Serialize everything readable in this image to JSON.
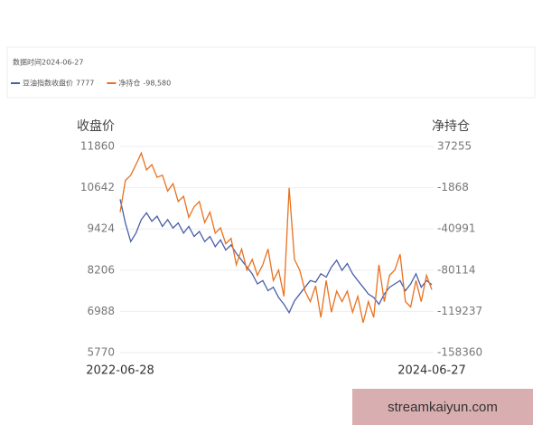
{
  "chart_data": {
    "type": "line",
    "header_text": "数据时间2024-06-27",
    "y_label": "收盘价",
    "y2_label": "净持仓",
    "watermark": "streamkaiyun.com",
    "categories": [
      "2022-06-28",
      null,
      null,
      null,
      null,
      null,
      null,
      null,
      null,
      null,
      null,
      null,
      null,
      null,
      null,
      null,
      null,
      null,
      null,
      null,
      null,
      null,
      null,
      null,
      null,
      null,
      null,
      null,
      null,
      null,
      null,
      null,
      null,
      null,
      null,
      null,
      null,
      null,
      null,
      null,
      null,
      null,
      null,
      null,
      null,
      null,
      null,
      null,
      null,
      null,
      null,
      null,
      null,
      null,
      null,
      null,
      null,
      null,
      null,
      "2024-06-27"
    ],
    "ylim": [
      5770,
      11860
    ],
    "yticks": [
      5770,
      6988,
      8206,
      9424,
      10642,
      11860
    ],
    "y2lim": [
      -158360,
      37255
    ],
    "y2ticks": [
      -158360,
      -119237,
      -80114,
      -40991,
      -1868,
      37255
    ],
    "grid": true,
    "series": [
      {
        "name": "豆油指数收盘价",
        "color": "#4a5ea8",
        "last": 7777,
        "values": [
          10300,
          9600,
          9050,
          9300,
          9700,
          9900,
          9650,
          9800,
          9500,
          9700,
          9450,
          9600,
          9300,
          9500,
          9200,
          9350,
          9050,
          9200,
          8900,
          9100,
          8800,
          8950,
          8700,
          8500,
          8300,
          8100,
          7800,
          7900,
          7600,
          7700,
          7400,
          7200,
          6950,
          7300,
          7500,
          7700,
          7900,
          7850,
          8100,
          8000,
          8300,
          8500,
          8200,
          8400,
          8100,
          7900,
          7700,
          7500,
          7400,
          7200,
          7500,
          7700,
          7800,
          7900,
          7600,
          7800,
          8100,
          7700,
          7900,
          7777
        ]
      },
      {
        "name": "净持仓",
        "color": "#e8711f",
        "axis": "y2",
        "last": {
          "value": -98580,
          "label": "-98,580"
        },
        "values": [
          -25000,
          5000,
          10000,
          20000,
          31000,
          15000,
          20000,
          8000,
          10000,
          -5000,
          2000,
          -15000,
          -10000,
          -30000,
          -20000,
          -15000,
          -35000,
          -25000,
          -45000,
          -40000,
          -55000,
          -50000,
          -75000,
          -60000,
          -80000,
          -70000,
          -85000,
          -75000,
          -60000,
          -90000,
          -80000,
          -105000,
          -2000,
          -70000,
          -80000,
          -100000,
          -110000,
          -95000,
          -125000,
          -90000,
          -120000,
          -100000,
          -110000,
          -100000,
          -120000,
          -105000,
          -130000,
          -110000,
          -125000,
          -75000,
          -110000,
          -85000,
          -80000,
          -65000,
          -110000,
          -115000,
          -90000,
          -110000,
          -85000,
          -98580
        ]
      }
    ]
  }
}
